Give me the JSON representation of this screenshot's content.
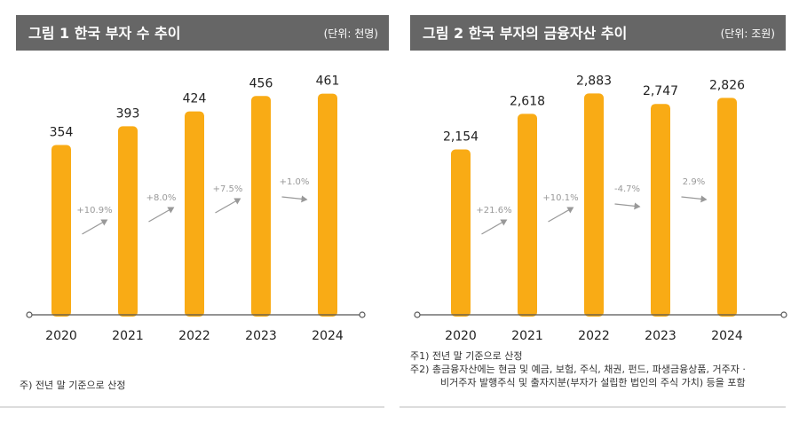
{
  "colors": {
    "header_bg": "#666666",
    "header_text": "#ffffff",
    "bar": "#f9ab15",
    "axis": "#555555",
    "arrow": "#999999",
    "growth_text": "#999999",
    "footer_rule": "#bbbbbb"
  },
  "chart_data": [
    {
      "type": "bar",
      "title": "그림 1  한국 부자 수 추이",
      "unit": "(단위: 천명)",
      "categories": [
        "2020",
        "2021",
        "2022",
        "2023",
        "2024"
      ],
      "values": [
        354,
        393,
        424,
        456,
        461
      ],
      "value_labels": [
        "354",
        "393",
        "424",
        "456",
        "461"
      ],
      "growth_labels": [
        "+10.9%",
        "+8.0%",
        "+7.5%",
        "+1.0%"
      ],
      "ylim": [
        0,
        480
      ],
      "grid": false,
      "legend": "none",
      "notes": [
        "주) 전년 말 기준으로 산정"
      ]
    },
    {
      "type": "bar",
      "title": "그림 2  한국 부자의 금융자산 추이",
      "unit": "(단위: 조원)",
      "categories": [
        "2020",
        "2021",
        "2022",
        "2023",
        "2024"
      ],
      "values": [
        2154,
        2618,
        2883,
        2747,
        2826
      ],
      "value_labels": [
        "2,154",
        "2,618",
        "2,883",
        "2,747",
        "2,826"
      ],
      "growth_labels": [
        "+21.6%",
        "+10.1%",
        "-4.7%",
        "2.9%"
      ],
      "ylim": [
        0,
        3000
      ],
      "grid": false,
      "legend": "none",
      "notes": [
        "주1) 전년 말 기준으로 산정",
        "주2) 총금융자산에는 현금 및 예금, 보험, 주식, 채권, 펀드, 파생금융상품, 거주자 ·",
        "비거주자 발행주식 및 출자지분(부자가 설립한 법인의 주식 가치) 등을 포함"
      ]
    }
  ]
}
